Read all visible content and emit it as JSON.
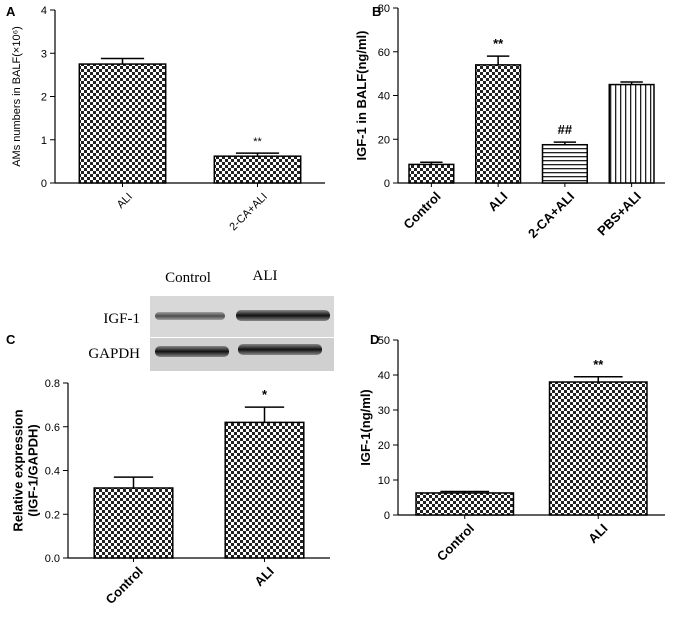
{
  "chart_data": [
    {
      "type": "bar",
      "panel": "A",
      "ylabel": [
        "AMs numbers in BALF(×10⁶)"
      ],
      "categories": [
        "ALI",
        "2-CA+ALI"
      ],
      "values": [
        2.75,
        0.62
      ],
      "errors": [
        0.13,
        0.07
      ],
      "annotations": [
        null,
        "**"
      ],
      "patterns": [
        "checker",
        "checker"
      ],
      "ylim": [
        0,
        4
      ],
      "yticks": [
        0,
        1,
        2,
        3,
        4
      ]
    },
    {
      "type": "bar",
      "panel": "B",
      "ylabel": [
        "IGF-1 in BALF(ng/ml)"
      ],
      "categories": [
        "Control",
        "ALI",
        "2-CA+ALI",
        "PBS+ALI"
      ],
      "values": [
        8.5,
        54,
        17.5,
        45
      ],
      "errors": [
        1,
        4,
        1.2,
        1.2
      ],
      "annotations": [
        null,
        "**",
        "##",
        null
      ],
      "patterns": [
        "checker",
        "checker",
        "hlines",
        "vlines"
      ],
      "ylim": [
        0,
        80
      ],
      "yticks": [
        0,
        20,
        40,
        60,
        80
      ]
    },
    {
      "type": "bar",
      "panel": "C",
      "ylabel": [
        "Relative expression",
        "(IGF-1/GAPDH)"
      ],
      "categories": [
        "Control",
        "ALI"
      ],
      "values": [
        0.32,
        0.62
      ],
      "errors": [
        0.05,
        0.07
      ],
      "annotations": [
        null,
        "*"
      ],
      "patterns": [
        "checker",
        "checker"
      ],
      "ylim": [
        0,
        0.8
      ],
      "yticks": [
        {
          "value": 0,
          "label": "0.0"
        },
        0.2,
        0.4,
        0.6,
        0.8
      ],
      "blot": {
        "columns": [
          "Control",
          "ALI"
        ],
        "rows": [
          "IGF-1",
          "GAPDH"
        ]
      }
    },
    {
      "type": "bar",
      "panel": "D",
      "ylabel": [
        "IGF-1(ng/ml)"
      ],
      "categories": [
        "Control",
        "ALI"
      ],
      "values": [
        6.3,
        38
      ],
      "errors": [
        0.4,
        1.5
      ],
      "annotations": [
        null,
        "**"
      ],
      "patterns": [
        "checker",
        "checker"
      ],
      "ylim": [
        0,
        50
      ],
      "yticks": [
        0,
        10,
        20,
        30,
        40,
        50
      ]
    }
  ]
}
